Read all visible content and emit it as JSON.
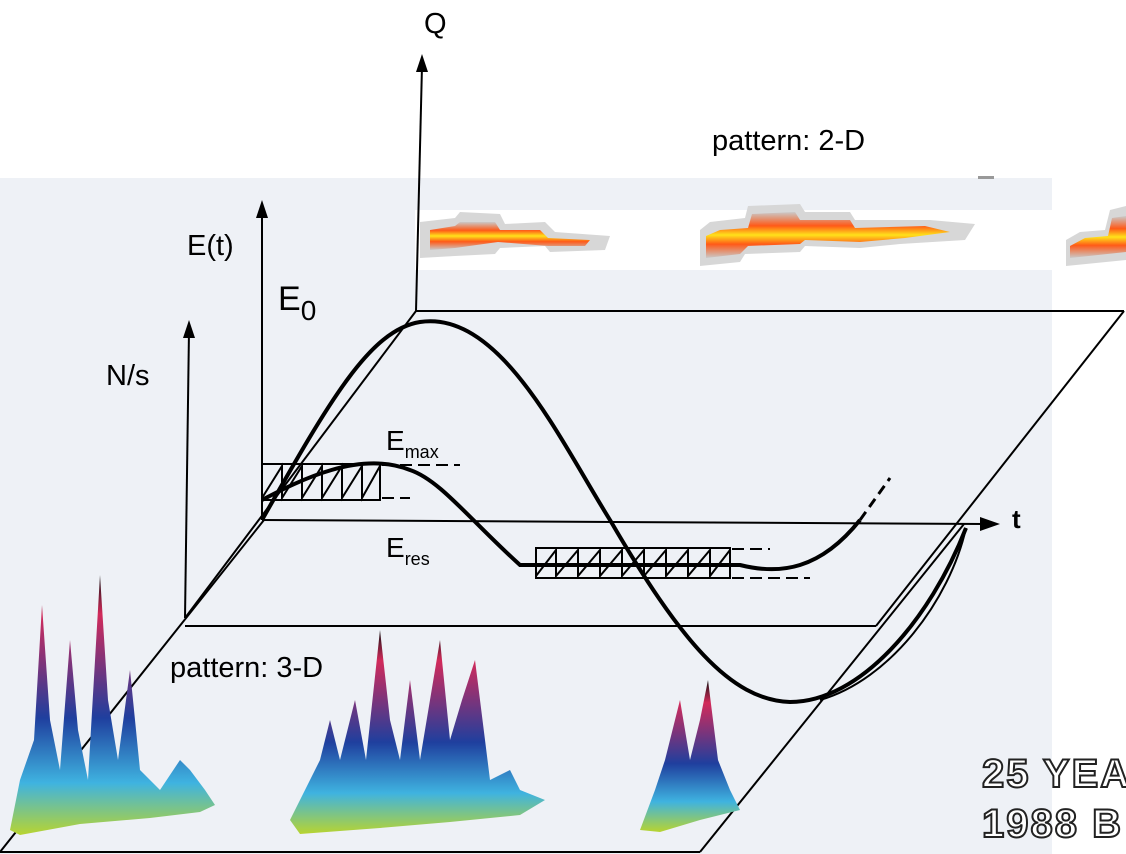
{
  "labels": {
    "q_axis": "Q",
    "pattern_2d": "pattern: 2-D",
    "pattern_3d": "pattern: 3-D",
    "e_t": "E(t)",
    "e0_base": "E",
    "e0_sub": "0",
    "n_per_s": "N/s",
    "emax_base": "E",
    "emax_sub": "max",
    "eres_base": "E",
    "eres_sub": "res",
    "t_axis": "t"
  },
  "banner": {
    "line1": "25 YEA",
    "line2": "1988 B"
  },
  "colors": {
    "panel_bg": "#eef1f6",
    "heat_hot": "#ffe21a",
    "heat_mid": "#ff5a18",
    "heat_edge": "#c9c9c9",
    "spike_red": "#d22a5a",
    "spike_blue": "#1f3f9e",
    "spike_cyan": "#3fb3e0",
    "spike_base": "#b8d430"
  }
}
